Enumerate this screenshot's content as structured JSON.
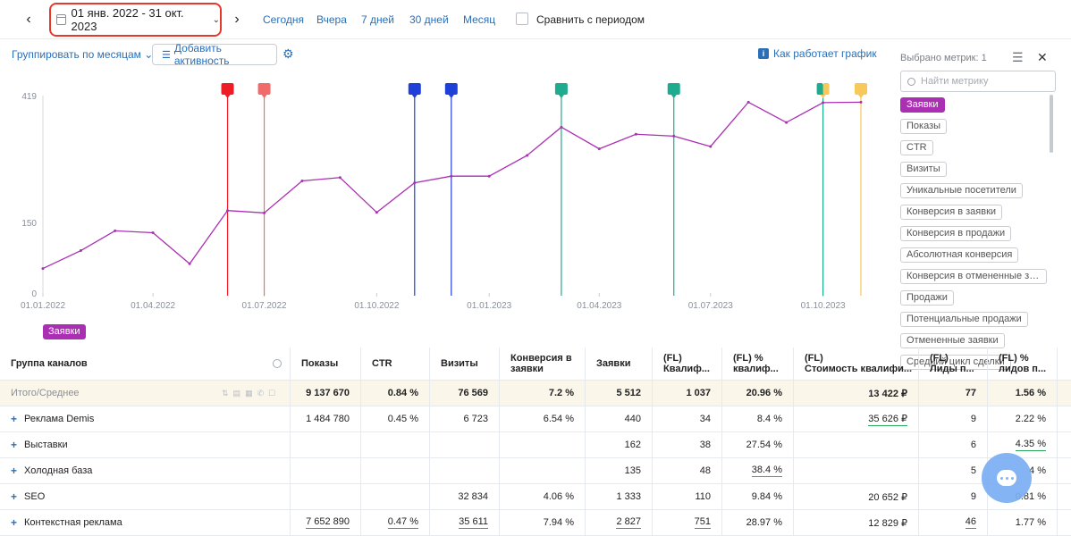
{
  "topbar": {
    "prev_icon": "chevron-left-icon",
    "next_icon": "chevron-right-icon",
    "date_range": "01 янв. 2022 - 31 окт. 2023",
    "quick": [
      "Сегодня",
      "Вчера",
      "7 дней",
      "30 дней",
      "Месяц"
    ],
    "compare_label": "Сравнить с периодом"
  },
  "toolbar": {
    "group_by": "Группировать по месяцам",
    "add_activity": "Добавить активность",
    "how_graph": "Как работает график"
  },
  "metrics": {
    "header": "Выбрано метрик: 1",
    "search_placeholder": "Найти метрику",
    "items": [
      {
        "label": "Заявки",
        "active": true
      },
      {
        "label": "Показы"
      },
      {
        "label": "CTR"
      },
      {
        "label": "Визиты"
      },
      {
        "label": "Уникальные посетители"
      },
      {
        "label": "Конверсия в заявки"
      },
      {
        "label": "Конверсия в продажи"
      },
      {
        "label": "Абсолютная конверсия"
      },
      {
        "label": "Конверсия в отмененные заявки"
      },
      {
        "label": "Продажи"
      },
      {
        "label": "Потенциальные продажи"
      },
      {
        "label": "Отмененные заявки"
      },
      {
        "label": "Средний цикл сделки"
      }
    ]
  },
  "chart_data": {
    "type": "line",
    "series": [
      {
        "name": "Заявки",
        "color": "#ab2fb3",
        "x": [
          "2022-01-01",
          "2022-02-01",
          "2022-03-01",
          "2022-04-01",
          "2022-05-01",
          "2022-06-01",
          "2022-07-01",
          "2022-08-01",
          "2022-09-01",
          "2022-10-01",
          "2022-11-01",
          "2022-12-01",
          "2023-01-01",
          "2023-02-01",
          "2023-03-01",
          "2023-04-01",
          "2023-05-01",
          "2023-06-01",
          "2023-07-01",
          "2023-08-01",
          "2023-09-01",
          "2023-10-01",
          "2023-11-01"
        ],
        "values": [
          52,
          90,
          132,
          128,
          62,
          175,
          170,
          238,
          245,
          171,
          234,
          248,
          248,
          292,
          352,
          306,
          337,
          333,
          311,
          405,
          362,
          404,
          405
        ]
      }
    ],
    "ylim": [
      0,
      419
    ],
    "yticks": [
      "419",
      "150",
      "0"
    ],
    "yticks_values": [
      419,
      150,
      0
    ],
    "xticks": [
      "01.01.2022",
      "01.04.2022",
      "01.07.2022",
      "01.10.2022",
      "01.01.2023",
      "01.04.2023",
      "01.07.2023",
      "01.10.2023"
    ],
    "xticks_dates": [
      "2022-01-01",
      "2022-04-01",
      "2022-07-01",
      "2022-10-01",
      "2023-01-01",
      "2023-04-01",
      "2023-07-01",
      "2023-10-01"
    ],
    "x_range": [
      "2022-01-01",
      "2023-11-01"
    ],
    "activities": [
      {
        "date": "2022-06-01",
        "color": "#ee1c24"
      },
      {
        "date": "2022-07-01",
        "color": "#f26b6b"
      },
      {
        "date": "2022-11-01",
        "color": "#1f3fd9"
      },
      {
        "date": "2022-12-01",
        "color": "#1f3fd9"
      },
      {
        "date": "2023-03-01",
        "color": "#1fab8f"
      },
      {
        "date": "2023-06-01",
        "color": "#1fab8f"
      },
      {
        "date": "2023-10-01",
        "color": "#1fab8f",
        "color2": "#f7c95a"
      },
      {
        "date": "2023-11-01",
        "color": "#f7c95a"
      }
    ],
    "grid": false,
    "legend": "bottom-left"
  },
  "series_tag": "Заявки",
  "table": {
    "headers": [
      "Группа каналов",
      "Показы",
      "CTR",
      "Визиты",
      "Конверсия в заявки",
      "Заявки",
      "(FL) Квалиф...",
      "(FL) % квалиф...",
      "(FL) Стоимость квалифи...",
      "(FL) Лиды п...",
      "(FL) % лидов п..."
    ],
    "header_lines": [
      [
        "Группа каналов"
      ],
      [
        "Показы"
      ],
      [
        "CTR"
      ],
      [
        "Визиты"
      ],
      [
        "Конверсия в",
        "заявки"
      ],
      [
        "Заявки"
      ],
      [
        "(FL)",
        "Квалиф..."
      ],
      [
        "(FL) %",
        "квалиф..."
      ],
      [
        "(FL)",
        "Стоимость квалифи..."
      ],
      [
        "(FL)",
        "Лиды п..."
      ],
      [
        "(FL) %",
        "лидов п..."
      ]
    ],
    "total": {
      "label": "Итого/Среднее",
      "cells": [
        "9 137 670",
        "0.84 %",
        "76 569",
        "7.2 %",
        "5 512",
        "1 037",
        "20.96 %",
        "13 422 ₽",
        "77",
        "1.56 %"
      ]
    },
    "rows": [
      {
        "label": "Реклама Demis",
        "cells": [
          "1 484 780",
          "0.45 %",
          "6 723",
          "6.54 %",
          "440",
          "34",
          "8.4 %",
          "35 626 ₽",
          "9",
          "2.22 %"
        ],
        "ul": {
          "7": "green"
        }
      },
      {
        "label": "Выставки",
        "cells": [
          "",
          "",
          "",
          "",
          "162",
          "38",
          "27.54 %",
          "",
          "6",
          "4.35 %"
        ],
        "ul": {
          "9": "green"
        }
      },
      {
        "label": "Холодная база",
        "cells": [
          "",
          "",
          "",
          "",
          "135",
          "48",
          "38.4 %",
          "",
          "5",
          "4 %"
        ],
        "ul": {
          "6": "red"
        }
      },
      {
        "label": "SEO",
        "cells": [
          "",
          "",
          "32 834",
          "4.06 %",
          "1 333",
          "110",
          "9.84 %",
          "20 652 ₽",
          "9",
          "0.81 %"
        ],
        "ul": {}
      },
      {
        "label": "Контекстная реклама",
        "cells": [
          "7 652 890",
          "0.47 %",
          "35 611",
          "7.94 %",
          "2 827",
          "751",
          "28.97 %",
          "12 829 ₽",
          "46",
          "1.77 %"
        ],
        "ul": {
          "0": "green",
          "1": "green",
          "2": "green",
          "4": "green",
          "5": "green",
          "8": "green"
        }
      }
    ]
  }
}
